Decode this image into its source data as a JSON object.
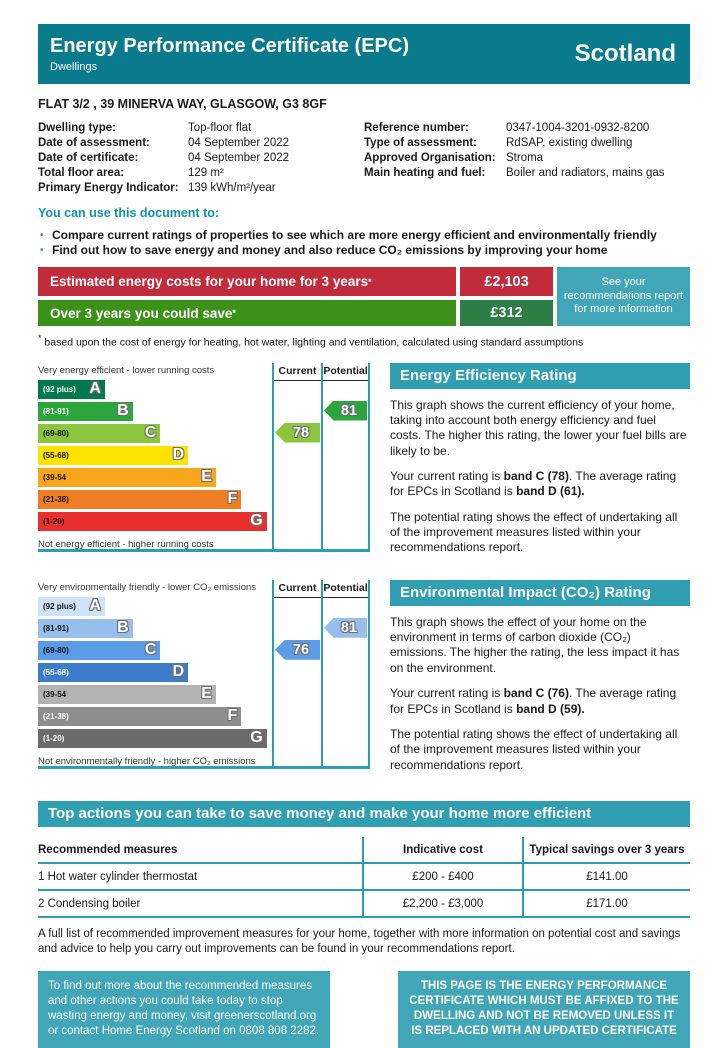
{
  "header": {
    "title": "Energy Performance Certificate (EPC)",
    "subtitle": "Dwellings",
    "region": "Scotland"
  },
  "address": "FLAT 3/2 , 39 MINERVA WAY, GLASGOW, G3 8GF",
  "details": {
    "left": [
      {
        "label": "Dwelling type:",
        "value": "Top-floor flat"
      },
      {
        "label": "Date of assessment:",
        "value": "04 September 2022"
      },
      {
        "label": "Date of certificate:",
        "value": "04 September 2022"
      },
      {
        "label": "Total floor area:",
        "value": "129 m²"
      },
      {
        "label": "Primary Energy Indicator:",
        "value": "139 kWh/m²/year"
      }
    ],
    "right": [
      {
        "label": "Reference number:",
        "value": "0347-1004-3201-0932-8200"
      },
      {
        "label": "Type of assessment:",
        "value": "RdSAP, existing dwelling"
      },
      {
        "label": "Approved Organisation:",
        "value": "Stroma"
      },
      {
        "label": "Main heating and fuel:",
        "value": "Boiler and radiators, mains gas"
      }
    ]
  },
  "intro": {
    "heading": "You can use this document to:",
    "bullets": [
      "Compare current ratings of properties to see which are more energy efficient and environmentally friendly",
      "Find out how to save energy and money and also reduce CO₂ emissions by improving your home"
    ]
  },
  "costs": {
    "rows": [
      {
        "label": "Estimated energy costs for your home for 3 years",
        "sup": "*",
        "value": "£2,103",
        "label_color": "#c22b3a",
        "value_color": "#c22b3a"
      },
      {
        "label": "Over 3 years you could save",
        "sup": "*",
        "value": "£312",
        "label_color": "#3c9119",
        "value_color": "#2d7d46"
      }
    ],
    "info": "See your recommendations report for more information",
    "info_color": "#41a6b7",
    "footnote_mark": "*",
    "footnote": " based upon the cost of energy for heating, hot water, lighting and ventilation, calculated using standard assumptions"
  },
  "eer_chart": {
    "type": "epc-rating-bar",
    "title": "Energy Efficiency Rating",
    "top_label": "Very energy efficient - lower running costs",
    "bottom_label": "Not energy efficient - higher running costs",
    "columns": [
      "Current",
      "Potential"
    ],
    "bands": [
      {
        "letter": "A",
        "range": "(92 plus)",
        "color": "#00794f"
      },
      {
        "letter": "B",
        "range": "(81-91)",
        "color": "#2aa63c"
      },
      {
        "letter": "C",
        "range": "(69-80)",
        "color": "#8cc63f"
      },
      {
        "letter": "D",
        "range": "(55-68)",
        "color": "#ffe300"
      },
      {
        "letter": "E",
        "range": "(39-54",
        "color": "#f8a71c"
      },
      {
        "letter": "F",
        "range": "(21-38)",
        "color": "#ee7d23"
      },
      {
        "letter": "G",
        "range": "(1-20)",
        "color": "#e9302f"
      }
    ],
    "current": {
      "value": 78,
      "band": "C",
      "color": "#8cc63f"
    },
    "potential": {
      "value": 81,
      "band": "B",
      "color": "#2aa63c"
    },
    "p1": "This graph shows the current efficiency of your home, taking into account both energy efficiency and fuel costs. The higher this rating, the lower your fuel bills are likely to be.",
    "rating_t1": "Your current rating is ",
    "rating_b1": "band C (78)",
    "rating_t2": ". The average rating for EPCs in Scotland is ",
    "rating_b2": "band D (61).",
    "p3": "The potential rating shows the effect of undertaking all of the improvement measures listed within your recommendations report."
  },
  "eir_chart": {
    "type": "epc-rating-bar",
    "title": "Environmental Impact (CO₂) Rating",
    "top_label": "Very environmentally friendly - lower CO₂ emissions",
    "bottom_label": "Not environmentally friendly - higher CO₂ emissions",
    "columns": [
      "Current",
      "Potential"
    ],
    "bands": [
      {
        "letter": "A",
        "range": "(92 plus)",
        "color": "#cfe3f7"
      },
      {
        "letter": "B",
        "range": "(81-91)",
        "color": "#96bfec"
      },
      {
        "letter": "C",
        "range": "(69-80)",
        "color": "#5c9ce6"
      },
      {
        "letter": "D",
        "range": "(55-68)",
        "color": "#3c7cc8"
      },
      {
        "letter": "E",
        "range": "(39-54",
        "color": "#b3b3b3"
      },
      {
        "letter": "F",
        "range": "(21-38)",
        "color": "#8d8d8d"
      },
      {
        "letter": "G",
        "range": "(1-20)",
        "color": "#6b6b6b"
      }
    ],
    "current": {
      "value": 76,
      "band": "C",
      "color": "#5c9ce6"
    },
    "potential": {
      "value": 81,
      "band": "B",
      "color": "#96bfec"
    },
    "p1": "This graph shows the effect of your home on the environment in terms of carbon dioxide (CO₂) emissions. The higher the rating, the less impact it has on the environment.",
    "rating_t1": "Your current rating is ",
    "rating_b1": "band C (76)",
    "rating_t2": ". The average rating for EPCs in Scotland is ",
    "rating_b2": "band D (59).",
    "p3": "The potential rating shows the effect of undertaking all of the improvement measures listed within your recommendations report."
  },
  "top_actions": {
    "title": "Top actions you can take to save money and make your home more efficient",
    "table": {
      "headers": [
        "Recommended measures",
        "Indicative cost",
        "Typical savings over 3 years"
      ],
      "rows": [
        [
          "1 Hot water cylinder thermostat",
          "£200 - £400",
          "£141.00"
        ],
        [
          "2 Condensing boiler",
          "£2,200 - £3,000",
          "£171.00"
        ]
      ]
    },
    "note": "A full list of recommended improvement measures for your home, together with more information on potential cost and savings and advice to help you carry out improvements can be found in your recommendations report."
  },
  "footer": {
    "left": "To find out more about the recommended measures and other actions you could take today to stop wasting energy and money, visit greenerscotland.org or contact Home Energy Scotland on 0808 808 2282.",
    "right": "THIS PAGE IS THE ENERGY PERFORMANCE CERTIFICATE WHICH MUST BE AFFIXED TO THE DWELLING AND NOT BE REMOVED UNLESS IT IS REPLACED WITH AN UPDATED CERTIFICATE"
  },
  "colors": {
    "header_teal": "#0a7b8d",
    "section_teal": "#2f9fb1",
    "box_teal": "#41a6b7",
    "line_teal": "#2a9fb4",
    "intro_teal": "#0e93aa",
    "cost_red": "#c22b3a",
    "cost_green_label": "#3c9119",
    "cost_green_value": "#2d7d46"
  }
}
